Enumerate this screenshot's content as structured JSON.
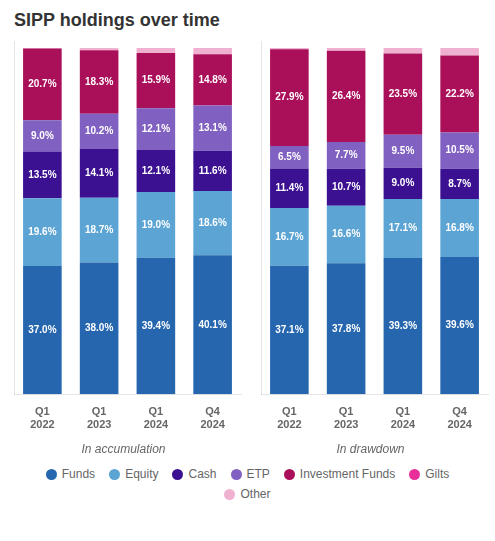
{
  "chart_data": [
    {
      "type": "bar",
      "title": "SIPP holdings over time",
      "subtitle": "In accumulation",
      "categories": [
        "Q1\n2022",
        "Q1\n2023",
        "Q1\n2024",
        "Q4\n2024"
      ],
      "stacked": true,
      "data_labels": true,
      "grid": false,
      "tick_labels": "x",
      "legend": "bottom",
      "ylim": [
        0,
        102
      ],
      "series": [
        {
          "name": "Funds",
          "color": "#2566ae",
          "values": [
            37.0,
            38.0,
            39.4,
            40.1
          ],
          "value_labels": [
            "37.0%",
            "38.0%",
            "39.4%",
            "40.1%"
          ]
        },
        {
          "name": "Equity",
          "color": "#5ba4d4",
          "values": [
            19.6,
            18.7,
            19.0,
            18.6
          ],
          "value_labels": [
            "19.6%",
            "18.7%",
            "19.0%",
            "18.6%"
          ]
        },
        {
          "name": "Cash",
          "color": "#3b1191",
          "values": [
            13.5,
            14.1,
            12.1,
            11.6
          ],
          "value_labels": [
            "13.5%",
            "14.1%",
            "12.1%",
            "11.6%"
          ]
        },
        {
          "name": "ETP",
          "color": "#8060c0",
          "values": [
            9.0,
            10.2,
            12.1,
            13.1
          ],
          "value_labels": [
            "9.0%",
            "10.2%",
            "12.1%",
            "13.1%"
          ]
        },
        {
          "name": "Investment Funds",
          "color": "#aa0f5a",
          "values": [
            20.7,
            18.3,
            15.9,
            14.8
          ],
          "value_labels": [
            "20.7%",
            "18.3%",
            "15.9%",
            "14.8%"
          ]
        },
        {
          "name": "Gilts",
          "color": "#e8309a",
          "values": [
            0.0,
            0.0,
            0.0,
            0.0
          ],
          "value_labels": [
            null,
            null,
            null,
            null
          ]
        },
        {
          "name": "Other",
          "color": "#f0b0d0",
          "values": [
            0.2,
            0.7,
            1.5,
            1.8
          ],
          "value_labels": [
            null,
            null,
            null,
            null
          ]
        }
      ]
    },
    {
      "type": "bar",
      "subtitle": "In drawdown",
      "categories": [
        "Q1\n2022",
        "Q1\n2023",
        "Q1\n2024",
        "Q4\n2024"
      ],
      "stacked": true,
      "data_labels": true,
      "grid": false,
      "tick_labels": "x",
      "ylim": [
        0,
        102
      ],
      "series": [
        {
          "name": "Funds",
          "color": "#2566ae",
          "values": [
            37.1,
            37.8,
            39.3,
            39.6
          ],
          "value_labels": [
            "37.1%",
            "37.8%",
            "39.3%",
            "39.6%"
          ]
        },
        {
          "name": "Equity",
          "color": "#5ba4d4",
          "values": [
            16.7,
            16.6,
            17.1,
            16.8
          ],
          "value_labels": [
            "16.7%",
            "16.6%",
            "17.1%",
            "16.8%"
          ]
        },
        {
          "name": "Cash",
          "color": "#3b1191",
          "values": [
            11.4,
            10.7,
            9.0,
            8.7
          ],
          "value_labels": [
            "11.4%",
            "10.7%",
            "9.0%",
            "8.7%"
          ]
        },
        {
          "name": "ETP",
          "color": "#8060c0",
          "values": [
            6.5,
            7.7,
            9.5,
            10.5
          ],
          "value_labels": [
            "6.5%",
            "7.7%",
            "9.5%",
            "10.5%"
          ]
        },
        {
          "name": "Investment Funds",
          "color": "#aa0f5a",
          "values": [
            27.9,
            26.4,
            23.5,
            22.2
          ],
          "value_labels": [
            "27.9%",
            "26.4%",
            "23.5%",
            "22.2%"
          ]
        },
        {
          "name": "Gilts",
          "color": "#e8309a",
          "values": [
            0.0,
            0.0,
            0.0,
            0.0
          ],
          "value_labels": [
            null,
            null,
            null,
            null
          ]
        },
        {
          "name": "Other",
          "color": "#f0b0d0",
          "values": [
            0.4,
            0.8,
            1.6,
            2.2
          ],
          "value_labels": [
            null,
            null,
            null,
            null
          ]
        }
      ]
    }
  ]
}
